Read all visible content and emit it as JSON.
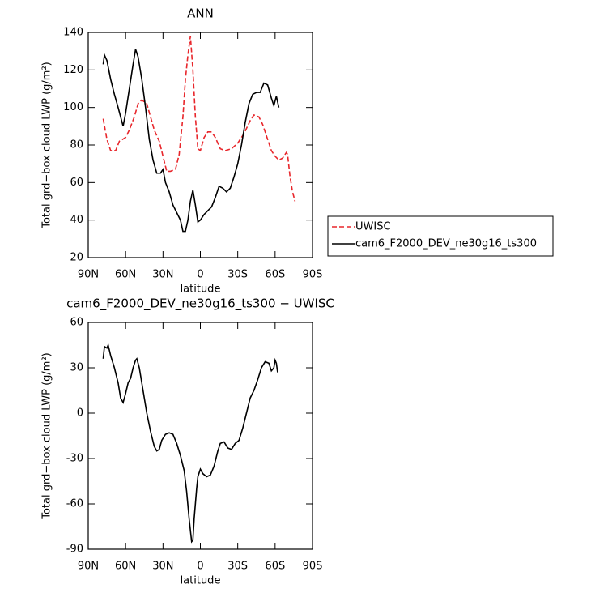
{
  "chart_data": [
    {
      "type": "line",
      "title": "ANN",
      "xlabel": "latitude",
      "ylabel": "Total grd−box cloud LWP (g/m²)",
      "xlim": [
        90,
        -90
      ],
      "xticks": [
        {
          "value": 90,
          "label": "90N"
        },
        {
          "value": 60,
          "label": "60N"
        },
        {
          "value": 30,
          "label": "30N"
        },
        0,
        {
          "value": -30,
          "label": "30S"
        },
        {
          "value": -60,
          "label": "60S"
        },
        {
          "value": -90,
          "label": "90S"
        }
      ],
      "ylim": [
        20,
        140
      ],
      "yticks": [
        20,
        40,
        60,
        80,
        100,
        120,
        140
      ],
      "legend": "right",
      "series": [
        {
          "name": "UWISC",
          "color": "#e8262b",
          "dash": true,
          "x": [
            78,
            75,
            72,
            68,
            65,
            60,
            57,
            53,
            50,
            47,
            43,
            40,
            37,
            33,
            30,
            27,
            24,
            20,
            17,
            14,
            12,
            10,
            8,
            6,
            4,
            2,
            0,
            -3,
            -6,
            -9,
            -12,
            -16,
            -20,
            -25,
            -30,
            -35,
            -40,
            -43,
            -47,
            -50,
            -53,
            -57,
            -60,
            -63,
            -66,
            -69,
            -70,
            -72,
            -74,
            -76
          ],
          "values": [
            94,
            83,
            77,
            77,
            82,
            84,
            88,
            95,
            102,
            104,
            102,
            95,
            88,
            82,
            74,
            66,
            66,
            67,
            75,
            95,
            115,
            128,
            138,
            120,
            95,
            78,
            77,
            84,
            87,
            87,
            84,
            78,
            77,
            78,
            81,
            86,
            93,
            96,
            95,
            91,
            85,
            77,
            74,
            72,
            73,
            76,
            75,
            63,
            55,
            50
          ]
        },
        {
          "name": "cam6_F2000_DEV_ne30g16_ts300",
          "color": "#000000",
          "dash": false,
          "x": [
            78,
            77,
            75,
            72,
            69,
            66,
            64,
            62,
            60,
            57,
            54,
            52,
            50,
            47,
            44,
            41,
            38,
            35,
            32,
            30,
            28,
            25,
            22,
            19,
            16,
            14,
            12,
            10,
            8,
            6,
            4,
            2,
            0,
            -3,
            -6,
            -9,
            -12,
            -15,
            -18,
            -21,
            -24,
            -27,
            -30,
            -33,
            -36,
            -39,
            -42,
            -45,
            -48,
            -51,
            -54,
            -57,
            -59,
            -61,
            -63
          ],
          "values": [
            123,
            128,
            125,
            115,
            107,
            100,
            95,
            90,
            97,
            110,
            123,
            131,
            127,
            115,
            100,
            83,
            72,
            65,
            65,
            67,
            60,
            55,
            48,
            44,
            40,
            34,
            34,
            40,
            50,
            56,
            48,
            39,
            40,
            43,
            45,
            47,
            52,
            58,
            57,
            55,
            57,
            63,
            70,
            80,
            92,
            102,
            107,
            108,
            108,
            113,
            112,
            105,
            101,
            106,
            100
          ]
        }
      ]
    },
    {
      "type": "line",
      "title": "cam6_F2000_DEV_ne30g16_ts300 − UWISC",
      "xlabel": "latitude",
      "ylabel": "Total grd−box cloud LWP (g/m²)",
      "xlim": [
        90,
        -90
      ],
      "xticks": [
        {
          "value": 90,
          "label": "90N"
        },
        {
          "value": 60,
          "label": "60N"
        },
        {
          "value": 30,
          "label": "30N"
        },
        0,
        {
          "value": -30,
          "label": "30S"
        },
        {
          "value": -60,
          "label": "60S"
        },
        {
          "value": -90,
          "label": "90S"
        }
      ],
      "ylim": [
        -90,
        60
      ],
      "yticks": [
        -90,
        -60,
        -30,
        0,
        30,
        60
      ],
      "series": [
        {
          "color": "#000000",
          "dash": false,
          "x": [
            78,
            77,
            75,
            74,
            72,
            69,
            66,
            64,
            62,
            60,
            58,
            56,
            54,
            52,
            51,
            49,
            46,
            43,
            40,
            37,
            35,
            33,
            31,
            28,
            25,
            22,
            19,
            16,
            13,
            11,
            9,
            7,
            6,
            5,
            3,
            2,
            0,
            -2,
            -5,
            -8,
            -11,
            -14,
            -16,
            -19,
            -22,
            -25,
            -28,
            -31,
            -34,
            -37,
            -40,
            -43,
            -46,
            -49,
            -52,
            -55,
            -57,
            -59,
            -60,
            -61,
            -62
          ],
          "values": [
            36,
            44,
            43,
            45,
            38,
            30,
            20,
            10,
            7,
            13,
            20,
            23,
            30,
            35,
            36,
            30,
            15,
            0,
            -12,
            -22,
            -25,
            -24,
            -18,
            -14,
            -13,
            -14,
            -20,
            -28,
            -38,
            -52,
            -70,
            -85,
            -84,
            -70,
            -50,
            -42,
            -37,
            -40,
            -42,
            -41,
            -35,
            -25,
            -20,
            -19,
            -23,
            -24,
            -20,
            -18,
            -10,
            0,
            10,
            15,
            22,
            30,
            34,
            33,
            28,
            30,
            35,
            33,
            27
          ]
        }
      ]
    }
  ]
}
